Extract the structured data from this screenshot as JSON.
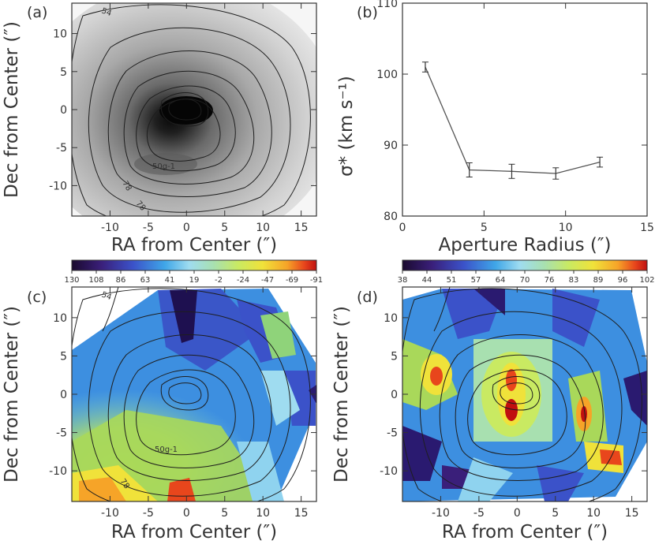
{
  "panels": {
    "a": {
      "label": "(a)",
      "xlabel": "RA from Center (″)",
      "ylabel": "Dec from Center (″)",
      "contour_labels": [
        "50g-1",
        "78",
        "78",
        "54"
      ]
    },
    "b": {
      "label": "(b)",
      "xlabel": "Aperture Radius (″)",
      "ylabel": "σ* (km s⁻¹)"
    },
    "c": {
      "label": "(c)",
      "xlabel": "RA from Center (″)",
      "ylabel": "Dec from Center (″)",
      "colorbar_ticks": [
        "130",
        "108",
        "86",
        "63",
        "41",
        "19",
        "-2",
        "-24",
        "-47",
        "-69",
        "-91"
      ],
      "contour_labels": [
        "50g-1",
        "78",
        "54"
      ]
    },
    "d": {
      "label": "(d)",
      "xlabel": "RA from Center (″)",
      "ylabel": "Dec from Center (″)",
      "colorbar_ticks": [
        "38",
        "44",
        "51",
        "57",
        "64",
        "70",
        "76",
        "83",
        "89",
        "96",
        "102"
      ]
    }
  },
  "chart_data": [
    {
      "type": "heatmap",
      "panel": "a",
      "description_source": "stellar surface-brightness map with contours",
      "xlim": [
        -15,
        17
      ],
      "ylim": [
        -14,
        14
      ],
      "xticks": [
        -10,
        -5,
        0,
        5,
        10,
        15
      ],
      "yticks": [
        -10,
        -5,
        0,
        5,
        10
      ]
    },
    {
      "type": "line",
      "panel": "b",
      "xlim": [
        0,
        15
      ],
      "ylim": [
        80,
        110
      ],
      "xticks": [
        0,
        5,
        10,
        15
      ],
      "yticks": [
        80,
        90,
        100,
        110
      ],
      "x": [
        1.4,
        4.1,
        6.7,
        9.4,
        12.1
      ],
      "y": [
        101.0,
        86.5,
        86.3,
        86.0,
        87.6
      ],
      "yerr": [
        0.7,
        1.0,
        1.0,
        0.8,
        0.7
      ]
    },
    {
      "type": "heatmap",
      "panel": "c",
      "xlim": [
        -15,
        17
      ],
      "ylim": [
        -14,
        14
      ],
      "xticks": [
        -10,
        -5,
        0,
        5,
        10,
        15
      ],
      "yticks": [
        -10,
        -5,
        0,
        5,
        10
      ],
      "colorbar_range": [
        130,
        -91
      ]
    },
    {
      "type": "heatmap",
      "panel": "d",
      "xlim": [
        -15,
        17
      ],
      "ylim": [
        -14,
        14
      ],
      "xticks": [
        -10,
        -5,
        0,
        5,
        10,
        15
      ],
      "yticks": [
        -10,
        -5,
        0,
        5,
        10
      ],
      "colorbar_range": [
        38,
        102
      ]
    }
  ],
  "colors": {
    "colorbar": [
      "#1a0a2e",
      "#3a1f7a",
      "#3b52c9",
      "#3fa6e8",
      "#8fd3ef",
      "#a8e0b0",
      "#c9ea62",
      "#f0e23a",
      "#f6a428",
      "#e8461c",
      "#c01010"
    ],
    "map_blue": "#3d8fe0",
    "map_green": "#a9d85a",
    "map_purple": "#2a1a70"
  }
}
